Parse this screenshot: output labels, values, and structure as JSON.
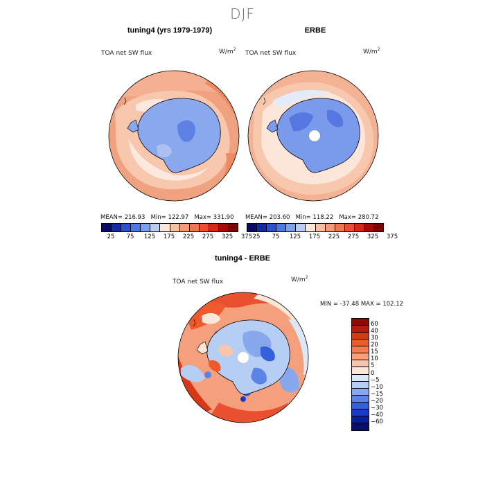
{
  "page": {
    "title": "DJF"
  },
  "panels": {
    "model": {
      "title": "tuning4 (yrs 1979-1979)",
      "variable_label": "TOA net SW flux",
      "units": "W/m",
      "units_exp": "2",
      "stats": {
        "mean_label": "MEAN=",
        "mean": "216.93",
        "min_label": "Min=",
        "min": "122.97",
        "max_label": "Max=",
        "max": "331.90"
      }
    },
    "obs": {
      "title": "ERBE",
      "variable_label": "TOA net SW flux",
      "units": "W/m",
      "units_exp": "2",
      "stats": {
        "mean_label": "MEAN=",
        "mean": "203.60",
        "min_label": "Min=",
        "min": "118.22",
        "max_label": "Max=",
        "max": "280.72"
      }
    },
    "diff": {
      "title": "tuning4 - ERBE",
      "variable_label": "TOA net SW flux",
      "units": "W/m",
      "units_exp": "2",
      "minmax": "MIN = -37.48 MAX = 102.12"
    }
  },
  "colorbars": {
    "abs": {
      "ticks": [
        "25",
        "75",
        "125",
        "175",
        "225",
        "275",
        "325",
        "375"
      ],
      "colors": [
        "#0a0a6e",
        "#102aa8",
        "#2a50d8",
        "#4a78e8",
        "#7aa0f0",
        "#b8ccf4",
        "#fbe6da",
        "#f8c0a2",
        "#f59a76",
        "#f07650",
        "#e85030",
        "#d02c14",
        "#a50c08",
        "#7a0606"
      ]
    },
    "diff": {
      "ticks": [
        "60",
        "40",
        "30",
        "20",
        "15",
        "10",
        "5",
        "0",
        "-5",
        "-10",
        "-15",
        "-20",
        "-30",
        "-40",
        "-60"
      ],
      "colors": [
        "#8a0a06",
        "#b81a0e",
        "#d83818",
        "#ef5a2c",
        "#f47c4e",
        "#f6a07a",
        "#f9c6ac",
        "#fce6da",
        "#dce8f8",
        "#b6cdf4",
        "#88a8ee",
        "#5c84e6",
        "#3460dc",
        "#1a3cc4",
        "#0a1ea0",
        "#08106e"
      ]
    }
  },
  "colors": {
    "land_outline": "#000000",
    "polar_hole": "#ffffff"
  }
}
